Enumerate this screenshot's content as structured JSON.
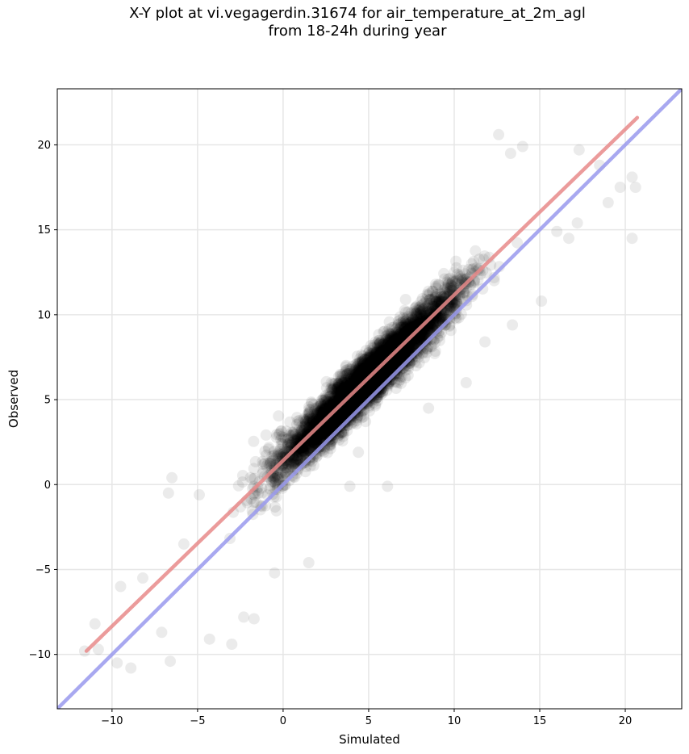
{
  "chart_data": {
    "type": "scatter",
    "title_line1": "X-Y plot at vi.vegagerdin.31674 for air_temperature_at_2m_agl",
    "title_line2": "from 18-24h during year",
    "xlabel": "Simulated",
    "ylabel": "Observed",
    "xlim": [
      -13.2,
      23.3
    ],
    "ylim": [
      -13.2,
      23.3
    ],
    "xticks": [
      -10,
      -5,
      0,
      5,
      10,
      15,
      20
    ],
    "yticks": [
      -10,
      -5,
      0,
      5,
      10,
      15,
      20
    ],
    "xtick_labels": [
      "−10",
      "−5",
      "0",
      "5",
      "10",
      "15",
      "20"
    ],
    "ytick_labels": [
      "−10",
      "−5",
      "0",
      "5",
      "10",
      "15",
      "20"
    ],
    "grid": true,
    "points": {
      "description": "approx. 6000 simulated/observed air temperature pairs, dense along a band near y = 0.98x + 1.5",
      "color": "#000000",
      "alpha": 0.08,
      "outliers": [
        [
          12.6,
          20.6
        ],
        [
          13.3,
          19.5
        ],
        [
          14.0,
          19.9
        ],
        [
          17.3,
          19.7
        ],
        [
          18.5,
          18.8
        ],
        [
          19.7,
          17.5
        ],
        [
          20.4,
          18.1
        ],
        [
          20.6,
          17.5
        ],
        [
          20.4,
          14.5
        ],
        [
          19.0,
          16.6
        ],
        [
          17.2,
          15.4
        ],
        [
          16.0,
          14.9
        ],
        [
          16.7,
          14.5
        ],
        [
          15.1,
          10.8
        ],
        [
          13.4,
          9.4
        ],
        [
          11.8,
          8.4
        ],
        [
          10.7,
          6.0
        ],
        [
          8.5,
          4.5
        ],
        [
          6.1,
          -0.1
        ],
        [
          4.4,
          1.9
        ],
        [
          3.9,
          -0.1
        ],
        [
          1.5,
          -4.6
        ],
        [
          -0.5,
          -5.2
        ],
        [
          -2.3,
          -7.8
        ],
        [
          -3.0,
          -9.4
        ],
        [
          -4.3,
          -9.1
        ],
        [
          -6.6,
          -10.4
        ],
        [
          -8.9,
          -10.8
        ],
        [
          -9.7,
          -10.5
        ],
        [
          -7.1,
          -8.7
        ],
        [
          -6.5,
          0.4
        ],
        [
          -4.9,
          -0.6
        ],
        [
          -6.7,
          -0.5
        ],
        [
          -5.8,
          -3.5
        ],
        [
          -10.8,
          -9.7
        ],
        [
          -11.6,
          -9.8
        ],
        [
          -11.0,
          -8.2
        ],
        [
          -8.2,
          -5.5
        ],
        [
          -9.5,
          -6.0
        ],
        [
          -1.7,
          -7.9
        ]
      ]
    },
    "lines": [
      {
        "name": "",
        "color": "#e88a8a",
        "x": [
          -11.5,
          20.7
        ],
        "y": [
          -9.8,
          21.6
        ]
      },
      {
        "name": "",
        "color": "#9a9aee",
        "x": [
          -13.2,
          23.3
        ],
        "y": [
          -13.2,
          23.3
        ]
      }
    ]
  }
}
